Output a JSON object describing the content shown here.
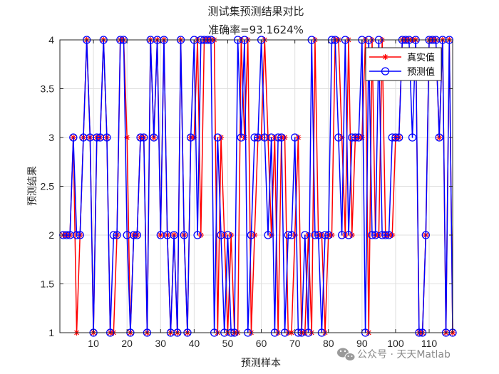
{
  "chart_data": {
    "type": "line",
    "title": "测试集预测结果对比",
    "subtitle": "准确率=93.1624%",
    "xlabel": "预测样本",
    "ylabel": "预测结果",
    "xlim": [
      0,
      117
    ],
    "ylim": [
      1,
      4
    ],
    "x_ticks": [
      10,
      20,
      30,
      40,
      50,
      60,
      70,
      80,
      90,
      100,
      110
    ],
    "y_ticks": [
      1,
      1.5,
      2,
      2.5,
      3,
      3.5,
      4
    ],
    "y_tick_labels": [
      "1",
      "1.5",
      "2",
      "2.5",
      "3",
      "3.5",
      "4"
    ],
    "grid": true,
    "legend_position": "top-right",
    "series": [
      {
        "name": "真实值",
        "color": "#ff0000",
        "marker": "asterisk",
        "values": [
          2,
          2,
          2,
          3,
          1,
          2,
          3,
          4,
          3,
          1,
          3,
          3,
          4,
          3,
          1,
          1,
          2,
          4,
          4,
          3,
          1,
          2,
          2,
          3,
          3,
          1,
          4,
          3,
          4,
          2,
          4,
          2,
          1,
          2,
          1,
          4,
          2,
          1,
          3,
          3,
          4,
          2,
          4,
          4,
          4,
          4,
          1,
          3,
          2,
          1,
          2,
          1,
          1,
          4,
          3,
          4,
          1,
          2,
          3,
          3,
          4,
          3,
          2,
          3,
          1,
          3,
          3,
          1,
          1,
          2,
          3,
          1,
          1,
          2,
          1,
          4,
          2,
          2,
          1,
          2,
          2,
          4,
          4,
          3,
          2,
          4,
          2,
          3,
          3,
          3,
          4,
          1,
          4,
          2,
          2,
          4,
          2,
          2,
          2,
          3,
          3,
          4,
          4,
          4,
          4,
          4,
          1,
          1,
          2,
          4,
          4,
          4,
          3,
          4,
          1,
          4,
          1
        ]
      },
      {
        "name": "预测值",
        "color": "#0000ff",
        "marker": "circle",
        "values": [
          2,
          2,
          2,
          3,
          2,
          2,
          3,
          4,
          3,
          1,
          3,
          3,
          4,
          3,
          1,
          2,
          2,
          4,
          4,
          2,
          1,
          2,
          2,
          3,
          3,
          1,
          4,
          3,
          4,
          2,
          4,
          2,
          1,
          2,
          1,
          4,
          2,
          1,
          3,
          4,
          2,
          4,
          4,
          4,
          4,
          1,
          3,
          2,
          1,
          2,
          1,
          1,
          4,
          3,
          4,
          1,
          2,
          3,
          3,
          4,
          3,
          2,
          3,
          1,
          3,
          3,
          1,
          2,
          2,
          3,
          1,
          1,
          2,
          1,
          4,
          2,
          2,
          1,
          2,
          2,
          4,
          4,
          3,
          2,
          4,
          2,
          3,
          3,
          3,
          4,
          1,
          4,
          2,
          2,
          4,
          2,
          2,
          2,
          3,
          3,
          3,
          4,
          4,
          4,
          3,
          4,
          1,
          1,
          2,
          4,
          4,
          4,
          3,
          4,
          1,
          4,
          1
        ]
      }
    ]
  },
  "watermark": {
    "text": "公众号 · 天天Matlab"
  }
}
